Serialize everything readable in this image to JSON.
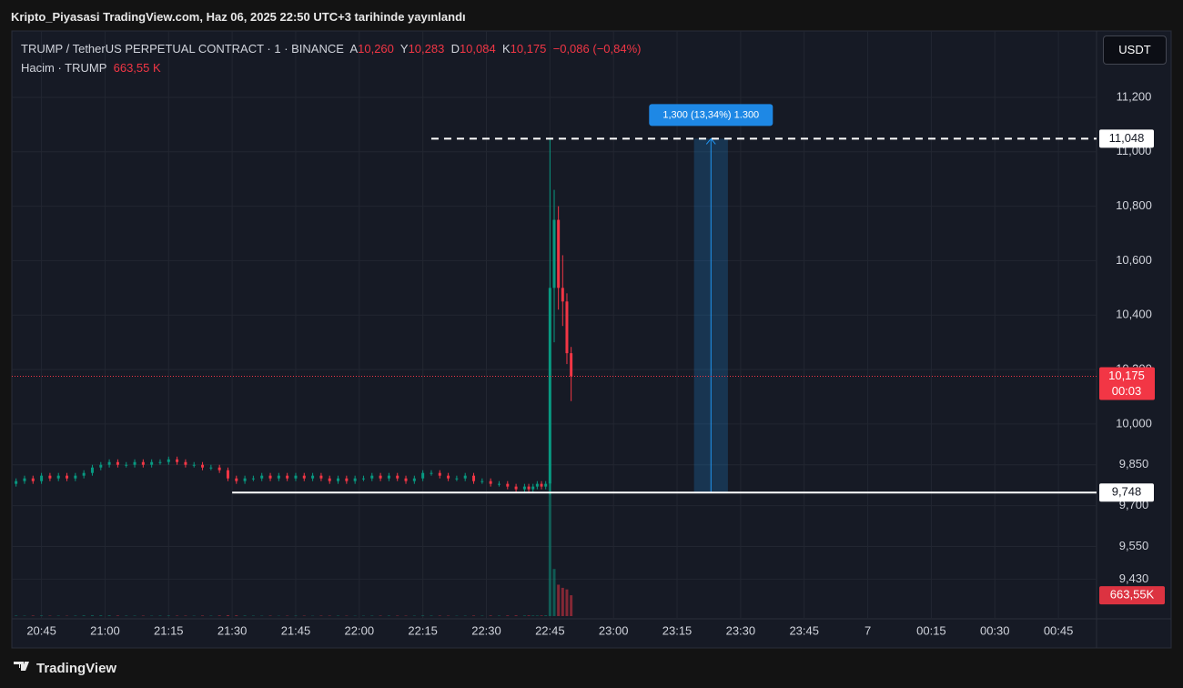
{
  "header": {
    "title": "Kripto_Piyasasi TradingView.com, Haz 06, 2025 22:50 UTC+3 tarihinde yayınlandı",
    "currency": "USDT"
  },
  "legend": {
    "symbol": "TRUMP / TetherUS PERPETUAL CONTRACT · 1 · BINANCE",
    "ohlc_names": [
      "A",
      "Y",
      "D",
      "K"
    ],
    "ohlc_labels": [
      "10,260",
      "10,283",
      "10,084",
      "10,175"
    ],
    "change": "−0,086 (−0,84%)",
    "volume_name": "Hacim · TRUMP",
    "volume_label": "663,55 K"
  },
  "footer": {
    "brand": "TradingView"
  },
  "chart_data": {
    "type": "candlestick",
    "up_color": "#089981",
    "down_color": "#f23645",
    "grid": true,
    "x": [
      "20:39",
      "20:41",
      "20:43",
      "20:45",
      "20:47",
      "20:49",
      "20:51",
      "20:53",
      "20:55",
      "20:57",
      "20:59",
      "21:01",
      "21:03",
      "21:05",
      "21:07",
      "21:09",
      "21:11",
      "21:13",
      "21:15",
      "21:17",
      "21:19",
      "21:21",
      "21:23",
      "21:25",
      "21:27",
      "21:29",
      "21:31",
      "21:33",
      "21:35",
      "21:37",
      "21:39",
      "21:41",
      "21:43",
      "21:45",
      "21:47",
      "21:49",
      "21:51",
      "21:53",
      "21:55",
      "21:57",
      "21:59",
      "22:01",
      "22:03",
      "22:05",
      "22:07",
      "22:09",
      "22:11",
      "22:13",
      "22:15",
      "22:17",
      "22:19",
      "22:21",
      "22:23",
      "22:25",
      "22:27",
      "22:29",
      "22:31",
      "22:33",
      "22:35",
      "22:37",
      "22:39",
      "22:40",
      "22:41",
      "22:42",
      "22:43",
      "22:44",
      "22:45",
      "22:46",
      "22:47",
      "22:48",
      "22:49",
      "22:50"
    ],
    "open": [
      9.78,
      9.79,
      9.8,
      9.79,
      9.81,
      9.8,
      9.81,
      9.8,
      9.81,
      9.82,
      9.84,
      9.85,
      9.86,
      9.85,
      9.85,
      9.86,
      9.85,
      9.86,
      9.86,
      9.87,
      9.86,
      9.85,
      9.85,
      9.84,
      9.84,
      9.83,
      9.8,
      9.79,
      9.8,
      9.8,
      9.81,
      9.8,
      9.81,
      9.8,
      9.81,
      9.8,
      9.81,
      9.8,
      9.79,
      9.8,
      9.79,
      9.8,
      9.8,
      9.81,
      9.8,
      9.81,
      9.8,
      9.79,
      9.8,
      9.82,
      9.82,
      9.81,
      9.8,
      9.8,
      9.81,
      9.79,
      9.79,
      9.78,
      9.78,
      9.77,
      9.76,
      9.77,
      9.76,
      9.77,
      9.78,
      9.77,
      9.78,
      10.5,
      10.75,
      10.5,
      10.45,
      10.26
    ],
    "high": [
      9.8,
      9.81,
      9.81,
      9.82,
      9.82,
      9.82,
      9.82,
      9.82,
      9.83,
      9.85,
      9.86,
      9.87,
      9.87,
      9.86,
      9.87,
      9.87,
      9.87,
      9.87,
      9.88,
      9.88,
      9.87,
      9.86,
      9.86,
      9.85,
      9.85,
      9.84,
      9.81,
      9.81,
      9.81,
      9.82,
      9.82,
      9.82,
      9.82,
      9.82,
      9.82,
      9.82,
      9.82,
      9.81,
      9.81,
      9.81,
      9.81,
      9.81,
      9.82,
      9.82,
      9.82,
      9.82,
      9.81,
      9.81,
      9.83,
      9.83,
      9.83,
      9.82,
      9.81,
      9.82,
      9.82,
      9.8,
      9.8,
      9.79,
      9.79,
      9.78,
      9.78,
      9.78,
      9.78,
      9.79,
      9.79,
      9.79,
      11.048,
      10.86,
      10.8,
      10.62,
      10.48,
      10.283
    ],
    "low": [
      9.77,
      9.78,
      9.78,
      9.78,
      9.79,
      9.79,
      9.79,
      9.79,
      9.8,
      9.81,
      9.83,
      9.84,
      9.84,
      9.84,
      9.84,
      9.84,
      9.84,
      9.85,
      9.85,
      9.85,
      9.84,
      9.84,
      9.83,
      9.83,
      9.82,
      9.79,
      9.78,
      9.78,
      9.79,
      9.79,
      9.79,
      9.79,
      9.79,
      9.79,
      9.79,
      9.79,
      9.79,
      9.78,
      9.78,
      9.78,
      9.78,
      9.79,
      9.79,
      9.79,
      9.79,
      9.79,
      9.78,
      9.78,
      9.79,
      9.81,
      9.8,
      9.79,
      9.79,
      9.79,
      9.78,
      9.78,
      9.77,
      9.77,
      9.76,
      9.75,
      9.75,
      9.75,
      9.75,
      9.76,
      9.76,
      9.76,
      9.74,
      10.3,
      10.42,
      10.36,
      10.22,
      10.084
    ],
    "close": [
      9.79,
      9.8,
      9.79,
      9.81,
      9.8,
      9.81,
      9.8,
      9.81,
      9.82,
      9.84,
      9.85,
      9.86,
      9.85,
      9.85,
      9.86,
      9.85,
      9.86,
      9.86,
      9.87,
      9.86,
      9.85,
      9.85,
      9.84,
      9.84,
      9.83,
      9.8,
      9.79,
      9.8,
      9.8,
      9.81,
      9.8,
      9.81,
      9.8,
      9.81,
      9.8,
      9.81,
      9.8,
      9.79,
      9.8,
      9.79,
      9.8,
      9.8,
      9.81,
      9.8,
      9.81,
      9.8,
      9.79,
      9.8,
      9.82,
      9.82,
      9.81,
      9.8,
      9.8,
      9.81,
      9.79,
      9.79,
      9.78,
      9.78,
      9.77,
      9.76,
      9.77,
      9.76,
      9.77,
      9.78,
      9.77,
      9.78,
      10.5,
      10.75,
      10.5,
      10.45,
      10.26,
      10.175
    ],
    "volume": [
      20,
      15,
      18,
      22,
      14,
      16,
      12,
      18,
      25,
      30,
      28,
      26,
      20,
      18,
      16,
      15,
      14,
      18,
      20,
      16,
      15,
      14,
      18,
      16,
      20,
      30,
      25,
      20,
      16,
      14,
      15,
      12,
      14,
      16,
      14,
      12,
      15,
      14,
      16,
      13,
      12,
      14,
      16,
      15,
      18,
      16,
      14,
      15,
      22,
      18,
      16,
      14,
      12,
      15,
      18,
      16,
      20,
      18,
      22,
      24,
      20,
      22,
      20,
      18,
      20,
      25,
      4200,
      1500,
      1000,
      900,
      850,
      663.55
    ],
    "volume_axis_label": "663,55K",
    "price_label": "10,175",
    "countdown": "00:03",
    "xlim": [
      "20:38",
      "00:54"
    ],
    "ylim": [
      9.284,
      11.444
    ],
    "xticks": [
      "20:45",
      "21:00",
      "21:15",
      "21:30",
      "21:45",
      "22:00",
      "22:15",
      "22:30",
      "22:45",
      "23:00",
      "23:15",
      "23:30",
      "23:45",
      {
        "value": "00:00",
        "label": "7"
      },
      "00:15",
      "00:30",
      "00:45"
    ],
    "yticks": [
      {
        "value": 11.2,
        "label": "11,200"
      },
      {
        "value": 11.0,
        "label": "11,000"
      },
      {
        "value": 10.8,
        "label": "10,800"
      },
      {
        "value": 10.6,
        "label": "10,600"
      },
      {
        "value": 10.4,
        "label": "10,400"
      },
      {
        "value": 10.2,
        "label": "10,200"
      },
      {
        "value": 10.0,
        "label": "10,000"
      },
      {
        "value": 9.85,
        "label": "9,850"
      },
      {
        "value": 9.7,
        "label": "9,700"
      },
      {
        "value": 9.55,
        "label": "9,550"
      },
      {
        "value": 9.43,
        "label": "9,430"
      }
    ],
    "hlines": [
      {
        "value": 11.048,
        "label": "11,048",
        "style": "dashed",
        "start": "22:17"
      },
      {
        "value": 9.748,
        "label": "9,748",
        "style": "solid",
        "start": "21:30"
      }
    ],
    "measure": {
      "label": "1,300 (13,34%) 1.300",
      "from": 9.748,
      "to": 11.048,
      "x": [
        "23:19",
        "23:27"
      ],
      "color": "#2196f3"
    }
  }
}
